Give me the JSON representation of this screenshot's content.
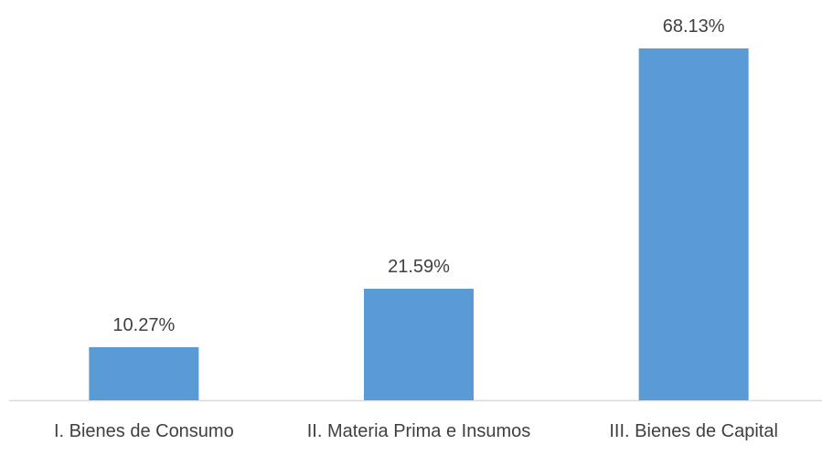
{
  "chart_data": {
    "type": "bar",
    "categories": [
      "I. Bienes de Consumo",
      "II. Materia Prima e Insumos",
      "III. Bienes de Capital"
    ],
    "values": [
      10.27,
      21.59,
      68.13
    ],
    "value_labels": [
      "10.27%",
      "21.59%",
      "68.13%"
    ],
    "color": "#5b9bd5"
  }
}
